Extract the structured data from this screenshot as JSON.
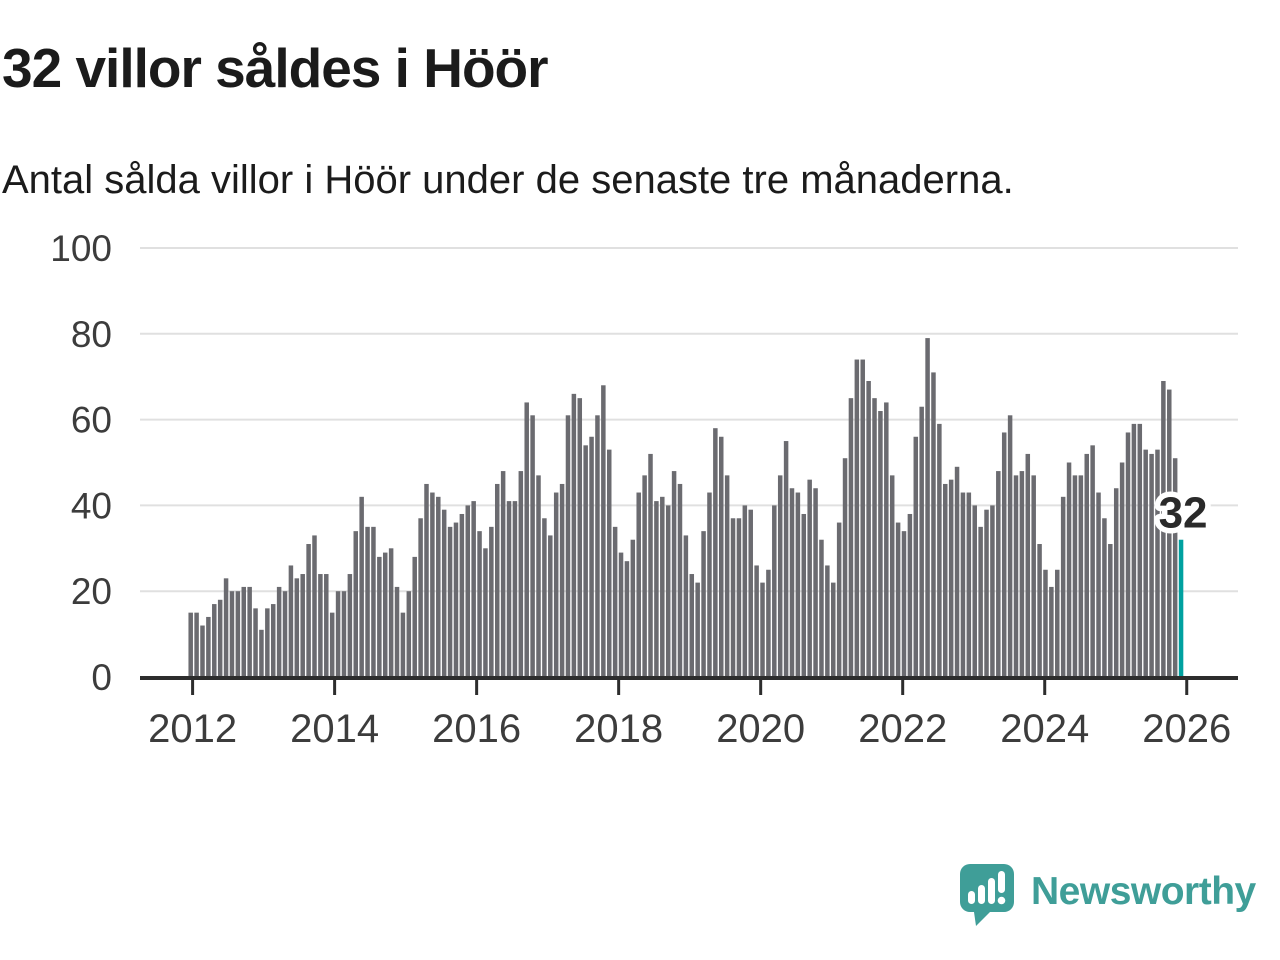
{
  "header": {
    "title": "32 villor såldes i Höör",
    "subtitle": "Antal sålda villor i Höör under de senaste tre månaderna."
  },
  "chart_data": {
    "type": "bar",
    "title": "32 villor såldes i Höör",
    "subtitle": "Antal sålda villor i Höör under de senaste tre månaderna.",
    "xlabel": "",
    "ylabel": "",
    "ylim": [
      0,
      100
    ],
    "yticks": [
      0,
      20,
      40,
      60,
      80,
      100
    ],
    "grid": true,
    "x_tick_labels": [
      "2012",
      "2014",
      "2016",
      "2018",
      "2020",
      "2022",
      "2024",
      "2026"
    ],
    "x_description": "monthly bars from 2012 through the final highlighted value at 2026",
    "values": [
      15,
      15,
      12,
      14,
      17,
      18,
      23,
      20,
      20,
      21,
      21,
      16,
      11,
      16,
      17,
      21,
      20,
      26,
      23,
      24,
      31,
      33,
      24,
      24,
      15,
      20,
      20,
      24,
      34,
      42,
      35,
      35,
      28,
      29,
      30,
      21,
      15,
      20,
      28,
      37,
      45,
      43,
      42,
      39,
      35,
      36,
      38,
      40,
      41,
      34,
      30,
      35,
      45,
      48,
      41,
      41,
      48,
      64,
      61,
      47,
      37,
      33,
      43,
      45,
      61,
      66,
      65,
      54,
      56,
      61,
      68,
      53,
      35,
      29,
      27,
      32,
      43,
      47,
      52,
      41,
      42,
      40,
      48,
      45,
      33,
      24,
      22,
      34,
      43,
      58,
      56,
      47,
      37,
      37,
      40,
      39,
      26,
      22,
      25,
      40,
      47,
      55,
      44,
      43,
      38,
      46,
      44,
      32,
      26,
      22,
      36,
      51,
      65,
      74,
      74,
      69,
      65,
      62,
      64,
      47,
      36,
      34,
      38,
      56,
      63,
      79,
      71,
      59,
      45,
      46,
      49,
      43,
      43,
      40,
      35,
      39,
      40,
      48,
      57,
      61,
      47,
      48,
      52,
      47,
      31,
      25,
      21,
      25,
      42,
      50,
      47,
      47,
      52,
      54,
      43,
      37,
      31,
      44,
      50,
      57,
      59,
      59,
      53,
      52,
      53,
      69,
      67,
      51,
      32
    ],
    "annotation": "32",
    "bar_color": "#6b6b70",
    "highlight_color": "#00a1a0",
    "axis_color": "#2d2d2d",
    "grid_color": "#e0e0e0",
    "tick_label_color": "#3c3c3c",
    "legend_position": "none"
  },
  "logo": {
    "text": "Newsworthy",
    "color": "#3f9e98"
  }
}
